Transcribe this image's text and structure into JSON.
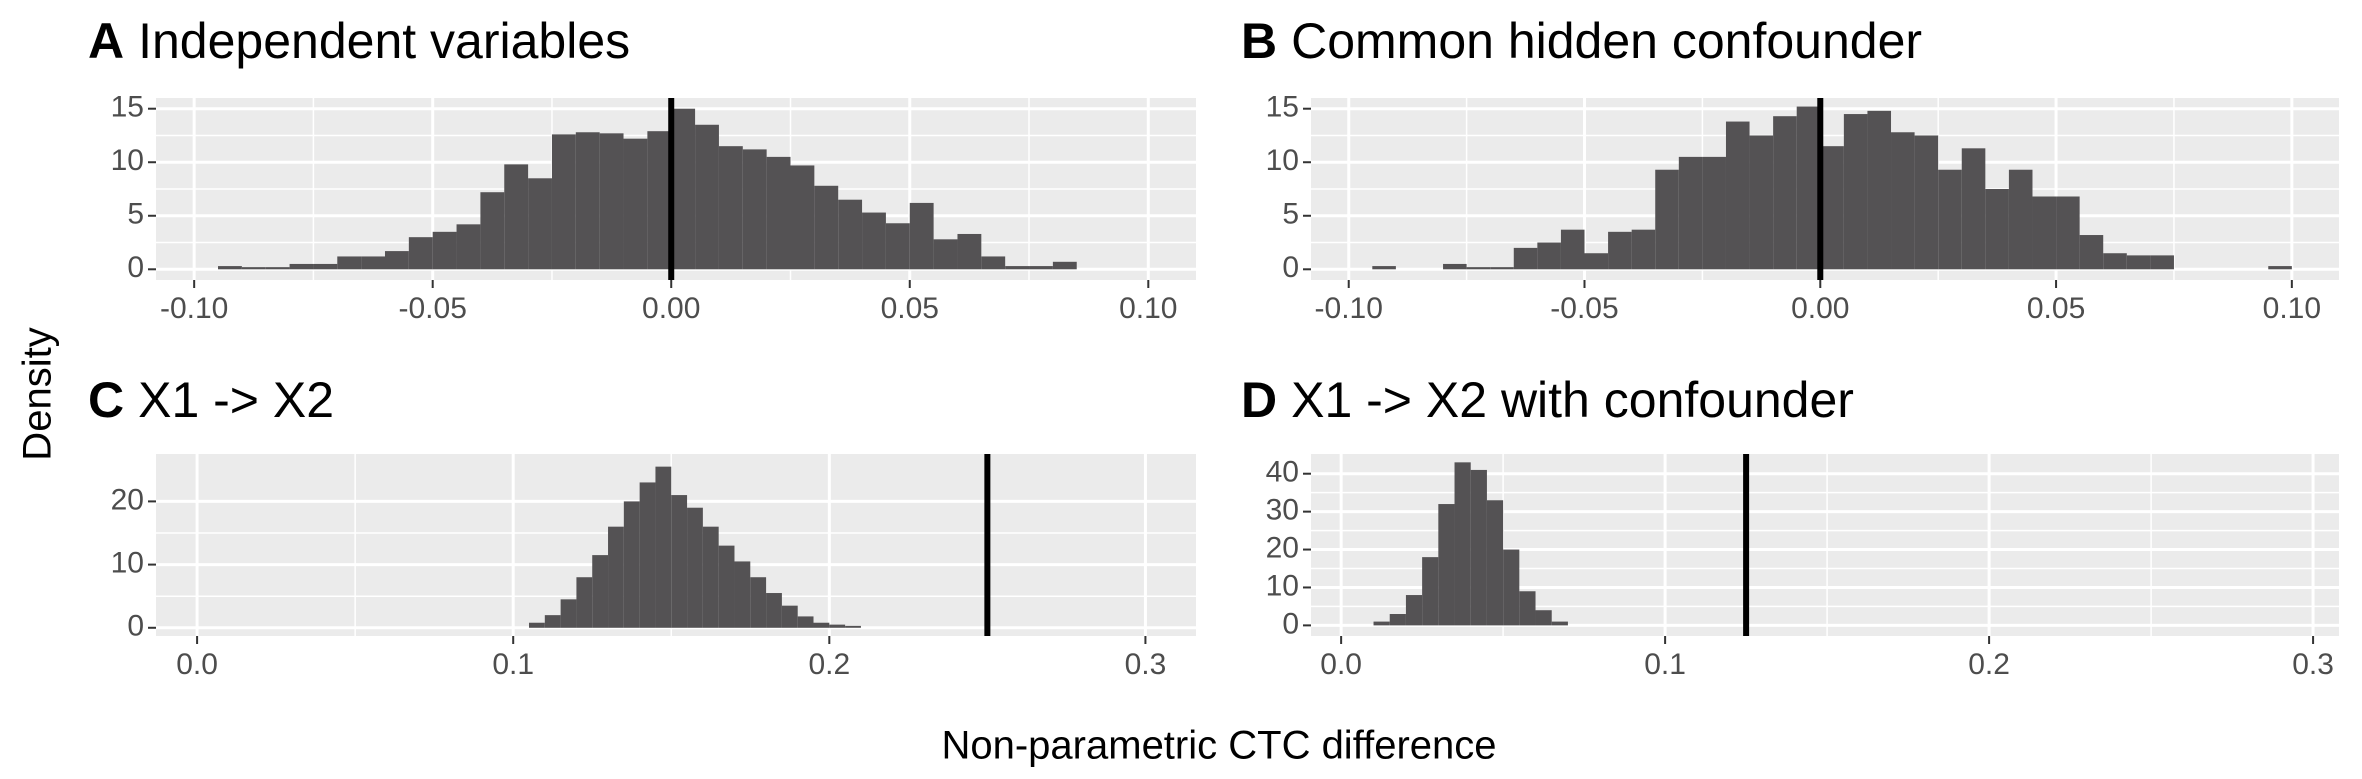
{
  "ylabel": "Density",
  "xlabel": "Non-parametric CTC difference",
  "chart_data": [
    {
      "type": "histogram",
      "label": "A",
      "title": "Independent variables",
      "color": "#545254",
      "grid": true,
      "bins": [
        -0.095,
        -0.09,
        -0.085,
        -0.08,
        -0.075,
        -0.07,
        -0.065,
        -0.06,
        -0.055,
        -0.05,
        -0.045,
        -0.04,
        -0.035,
        -0.03,
        -0.025,
        -0.02,
        -0.015,
        -0.01,
        -0.005,
        0,
        0.005,
        0.01,
        0.015,
        0.02,
        0.025,
        0.03,
        0.035,
        0.04,
        0.045,
        0.05,
        0.055,
        0.06,
        0.065,
        0.07,
        0.075,
        0.08,
        0.085
      ],
      "values": [
        0.3,
        0.2,
        0.2,
        0.5,
        0.5,
        1.2,
        1.2,
        1.7,
        3,
        3.5,
        4.2,
        7.2,
        9.8,
        8.5,
        12.6,
        12.8,
        12.7,
        12.2,
        12.9,
        15,
        13.5,
        11.5,
        11.2,
        10.5,
        9.7,
        7.8,
        6.5,
        5.3,
        4.3,
        6.2,
        2.8,
        3.3,
        1.2,
        0.3,
        0.3,
        0.7
      ],
      "reference_line": 0,
      "xlim": [
        -0.108,
        0.11
      ],
      "xticks": [
        {
          "value": -0.1,
          "label": "-0.10"
        },
        -0.05,
        {
          "value": 0,
          "label": "0.00"
        },
        0.05,
        {
          "value": 0.1,
          "label": "0.10"
        }
      ],
      "ylim": [
        -1,
        16
      ],
      "yticks": [
        0,
        5,
        10,
        15
      ]
    },
    {
      "type": "histogram",
      "label": "B",
      "title": "Common hidden confounder",
      "color": "#545254",
      "grid": true,
      "bins": [
        -0.095,
        -0.09,
        -0.085,
        -0.08,
        -0.075,
        -0.07,
        -0.065,
        -0.06,
        -0.055,
        -0.05,
        -0.045,
        -0.04,
        -0.035,
        -0.03,
        -0.025,
        -0.02,
        -0.015,
        -0.01,
        -0.005,
        0,
        0.005,
        0.01,
        0.015,
        0.02,
        0.025,
        0.03,
        0.035,
        0.04,
        0.045,
        0.05,
        0.055,
        0.06,
        0.065,
        0.07,
        0.075,
        0.08,
        0.085,
        0.09,
        0.095,
        0.1
      ],
      "values": [
        0.3,
        0,
        0,
        0.5,
        0.2,
        0.2,
        2,
        2.5,
        3.7,
        1.5,
        3.5,
        3.7,
        9.3,
        10.5,
        10.5,
        13.8,
        12.5,
        14.3,
        15.2,
        11.5,
        14.5,
        14.8,
        12.8,
        12.5,
        9.3,
        11.3,
        7.5,
        9.3,
        6.8,
        6.8,
        3.2,
        1.5,
        1.3,
        1.3,
        0,
        0,
        0,
        0,
        0.3
      ],
      "reference_line": 0,
      "xlim": [
        -0.108,
        0.11
      ],
      "xticks": [
        {
          "value": -0.1,
          "label": "-0.10"
        },
        -0.05,
        {
          "value": 0,
          "label": "0.00"
        },
        0.05,
        {
          "value": 0.1,
          "label": "0.10"
        }
      ],
      "ylim": [
        -1,
        16
      ],
      "yticks": [
        0,
        5,
        10,
        15
      ]
    },
    {
      "type": "histogram",
      "label": "C",
      "title": "X1 -> X2",
      "color": "#545254",
      "grid": true,
      "bins": [
        0.105,
        0.11,
        0.115,
        0.12,
        0.125,
        0.13,
        0.135,
        0.14,
        0.145,
        0.15,
        0.155,
        0.16,
        0.165,
        0.17,
        0.175,
        0.18,
        0.185,
        0.19,
        0.195,
        0.2,
        0.205,
        0.21
      ],
      "values": [
        0.8,
        2,
        4.5,
        8,
        11.5,
        16,
        20,
        23,
        25.5,
        21,
        19,
        16,
        13,
        10.5,
        8,
        5.5,
        3.5,
        1.8,
        0.8,
        0.5,
        0.3
      ],
      "reference_line": 0.25,
      "xlim": [
        -0.013,
        0.316
      ],
      "xticks": [
        {
          "value": 0,
          "label": "0.0"
        },
        0.1,
        0.2,
        0.3
      ],
      "ylim": [
        -1.3,
        27.5
      ],
      "yticks": [
        0,
        10,
        20
      ]
    },
    {
      "type": "histogram",
      "label": "D",
      "title": "X1 -> X2 with confounder",
      "color": "#545254",
      "grid": true,
      "bins": [
        0.01,
        0.015,
        0.02,
        0.025,
        0.03,
        0.035,
        0.04,
        0.045,
        0.05,
        0.055,
        0.06,
        0.065,
        0.07
      ],
      "values": [
        1,
        3,
        8,
        18,
        32,
        43,
        41,
        33,
        20,
        9,
        4,
        1
      ],
      "reference_line": 0.125,
      "xlim": [
        -0.0093,
        0.308
      ],
      "xticks": [
        {
          "value": 0,
          "label": "0.0"
        },
        0.1,
        0.2,
        0.3
      ],
      "ylim": [
        -2.8,
        45.2
      ],
      "yticks": [
        0,
        10,
        20,
        30,
        40
      ]
    }
  ]
}
